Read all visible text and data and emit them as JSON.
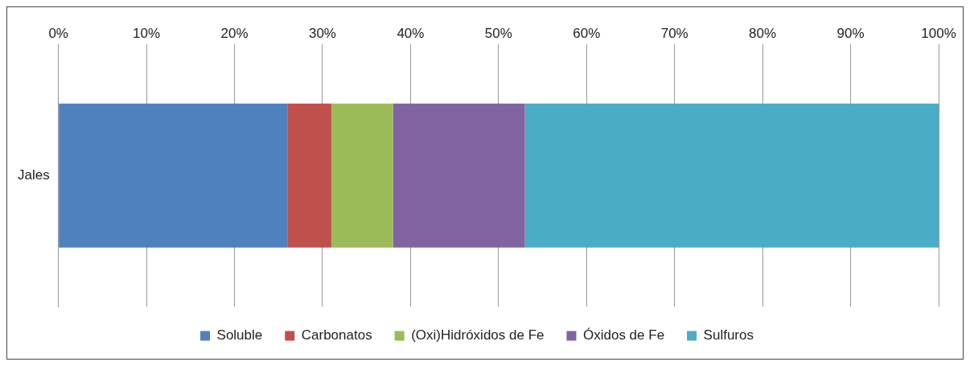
{
  "chart_data": {
    "type": "bar",
    "orientation": "horizontal",
    "stacked": true,
    "categories": [
      "Jales"
    ],
    "series": [
      {
        "name": "Soluble",
        "color": "#4f81bd",
        "values": [
          26
        ]
      },
      {
        "name": "Carbonatos",
        "color": "#c0504d",
        "values": [
          5
        ]
      },
      {
        "name": "(Oxi)Hidróxidos de Fe",
        "color": "#9bbb59",
        "values": [
          7
        ]
      },
      {
        "name": "Óxidos de Fe",
        "color": "#8064a2",
        "values": [
          15
        ]
      },
      {
        "name": "Sulfuros",
        "color": "#4bacc6",
        "values": [
          47
        ]
      }
    ],
    "xlim": [
      0,
      100
    ],
    "xticks": [
      {
        "value": 0,
        "label": "0%"
      },
      {
        "value": 10,
        "label": "10%"
      },
      {
        "value": 20,
        "label": "20%"
      },
      {
        "value": 30,
        "label": "30%"
      },
      {
        "value": 40,
        "label": "40%"
      },
      {
        "value": 50,
        "label": "50%"
      },
      {
        "value": 60,
        "label": "60%"
      },
      {
        "value": 70,
        "label": "70%"
      },
      {
        "value": 80,
        "label": "80%"
      },
      {
        "value": 90,
        "label": "90%"
      },
      {
        "value": 100,
        "label": "100%"
      }
    ],
    "grid": "x",
    "legend": "bottom"
  }
}
